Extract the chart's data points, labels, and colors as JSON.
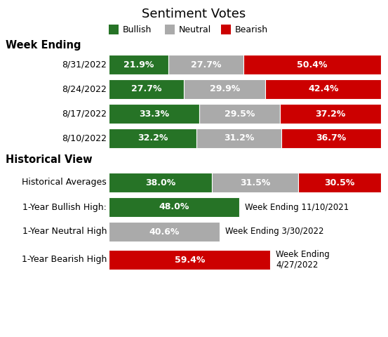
{
  "title": "Sentiment Votes",
  "title_fontsize": 13,
  "background_color": "#ffffff",
  "green": "#267326",
  "gray": "#aaaaaa",
  "red": "#cc0000",
  "section1_header": "Week Ending",
  "section2_header": "Historical View",
  "weekly_rows": [
    {
      "label": "8/31/2022",
      "bullish": 21.9,
      "neutral": 27.7,
      "bearish": 50.4
    },
    {
      "label": "8/24/2022",
      "bullish": 27.7,
      "neutral": 29.9,
      "bearish": 42.4
    },
    {
      "label": "8/17/2022",
      "bullish": 33.3,
      "neutral": 29.5,
      "bearish": 37.2
    },
    {
      "label": "8/10/2022",
      "bullish": 32.2,
      "neutral": 31.2,
      "bearish": 36.7
    }
  ],
  "historical_rows": [
    {
      "label": "Historical Averages",
      "bullish": 38.0,
      "neutral": 31.5,
      "bearish": 30.5,
      "type": "full"
    },
    {
      "label": "1-Year Bullish High:",
      "value": 48.0,
      "color": "green",
      "annotation": "Week Ending 11/10/2021",
      "type": "single"
    },
    {
      "label": "1-Year Neutral High",
      "value": 40.6,
      "color": "gray",
      "annotation": "Week Ending 3/30/2022",
      "type": "single"
    },
    {
      "label": "1-Year Bearish High",
      "value": 59.4,
      "color": "red",
      "annotation": "Week Ending\n4/27/2022",
      "type": "single"
    }
  ],
  "bar_max": 100,
  "font_color_dark": "#000000",
  "font_color_white": "#ffffff",
  "label_fontsize": 9,
  "bar_label_fontsize": 9,
  "annotation_fontsize": 8.5,
  "header_fontsize": 10.5
}
